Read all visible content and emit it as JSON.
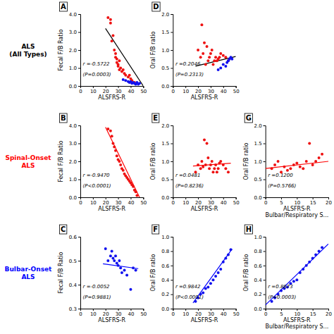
{
  "chart_data": [
    {
      "type": "scatter",
      "title": "A",
      "xlabel": "ALSFRS-R",
      "ylabel": "Fecal F/B Ratio",
      "xlim": [
        0,
        50
      ],
      "ylim": [
        0.0,
        4.0
      ],
      "xticks": [
        0,
        10,
        20,
        30,
        40,
        50
      ],
      "yticks": [
        {
          "value": 0.0,
          "label": "0.0"
        },
        {
          "value": 1.0,
          "label": "1.0"
        },
        {
          "value": 2.0,
          "label": "2.0"
        },
        {
          "value": 3.0,
          "label": "3.0"
        },
        {
          "value": 4.0,
          "label": "4.0"
        }
      ],
      "annotations": [
        "r =-0.5722",
        "(P=0.0003)"
      ],
      "series": [
        {
          "type": "scatter",
          "color": "#EE1111",
          "x": [
            22,
            24,
            24,
            25,
            26,
            27,
            28,
            28,
            29,
            29,
            30,
            30,
            31,
            31,
            32,
            33,
            34,
            35,
            36,
            38,
            39,
            40,
            41,
            43
          ],
          "values": [
            3.8,
            3.7,
            3.5,
            2.5,
            2.8,
            2.0,
            1.8,
            1.6,
            1.5,
            1.3,
            1.2,
            1.1,
            1.4,
            0.9,
            1.0,
            0.8,
            0.9,
            0.7,
            0.6,
            0.5,
            0.6,
            0.4,
            0.3,
            0.2
          ]
        },
        {
          "type": "scatter",
          "color": "#1111EE",
          "x": [
            34,
            36,
            38,
            39,
            40,
            41,
            42,
            43,
            44,
            45,
            46,
            47
          ],
          "values": [
            0.35,
            0.3,
            0.25,
            0.2,
            0.25,
            0.15,
            0.2,
            0.15,
            0.1,
            0.2,
            0.1,
            0.15
          ]
        },
        {
          "type": "line",
          "color": "black",
          "x": [
            20,
            50
          ],
          "values": [
            3.2,
            0.0
          ]
        }
      ]
    },
    {
      "type": "scatter",
      "title": "B",
      "xlabel": "ALSFRS-R",
      "ylabel": "Fecal F/B Ratio",
      "xlim": [
        0,
        50
      ],
      "ylim": [
        0.0,
        4.0
      ],
      "xticks": [
        0,
        10,
        20,
        30,
        40,
        50
      ],
      "yticks": [
        {
          "value": 0.0,
          "label": "0.0"
        },
        {
          "value": 1.0,
          "label": "1.0"
        },
        {
          "value": 2.0,
          "label": "2.0"
        },
        {
          "value": 3.0,
          "label": "3.0"
        },
        {
          "value": 4.0,
          "label": "4.0"
        }
      ],
      "annotations": [
        "r =-0.9470",
        "(P<0.0001)"
      ],
      "series": [
        {
          "type": "scatter",
          "color": "#EE1111",
          "x": [
            22,
            24,
            25,
            26,
            27,
            28,
            29,
            30,
            31,
            32,
            33,
            34,
            35,
            36,
            37,
            38,
            39,
            40,
            41,
            42,
            43,
            44,
            45
          ],
          "values": [
            3.8,
            3.7,
            3.4,
            3.0,
            2.8,
            2.6,
            2.3,
            2.1,
            2.0,
            1.8,
            1.6,
            1.5,
            1.3,
            1.2,
            1.1,
            1.0,
            0.9,
            0.8,
            0.7,
            0.6,
            0.4,
            0.3,
            0.1
          ]
        },
        {
          "type": "line",
          "color": "red",
          "x": [
            20,
            47
          ],
          "values": [
            3.9,
            0.0
          ]
        }
      ]
    },
    {
      "type": "scatter",
      "title": "C",
      "xlabel": "ALSFRS-R",
      "ylabel": "Fecal F/B Ratio",
      "xlim": [
        0,
        50
      ],
      "ylim": [
        0.3,
        0.6
      ],
      "xticks": [
        0,
        10,
        20,
        30,
        40,
        50
      ],
      "yticks": [
        0.3,
        0.4,
        0.5,
        0.6
      ],
      "annotations": [
        "r =-0.0052",
        "(P=0.9881)"
      ],
      "series": [
        {
          "type": "scatter",
          "color": "#1111EE",
          "x": [
            20,
            22,
            24,
            25,
            26,
            27,
            28,
            29,
            30,
            31,
            32,
            33,
            35,
            37,
            40,
            42,
            44
          ],
          "values": [
            0.55,
            0.5,
            0.52,
            0.54,
            0.51,
            0.5,
            0.52,
            0.49,
            0.48,
            0.5,
            0.47,
            0.45,
            0.46,
            0.44,
            0.38,
            0.47,
            0.46
          ]
        },
        {
          "type": "line",
          "color": "blue",
          "x": [
            18,
            46
          ],
          "values": [
            0.487,
            0.467
          ]
        }
      ]
    },
    {
      "type": "scatter",
      "title": "D",
      "xlabel": "ALSFRS-R",
      "ylabel": "Oral F/B ratio",
      "xlim": [
        0,
        50
      ],
      "ylim": [
        0.0,
        2.0
      ],
      "xticks": [
        0,
        10,
        20,
        30,
        40,
        50
      ],
      "yticks": [
        {
          "value": 0.0,
          "label": "0.0"
        },
        0.5,
        {
          "value": 1.0,
          "label": "1.0"
        },
        1.5,
        {
          "value": 2.0,
          "label": "2.0"
        }
      ],
      "annotations": [
        "r =0.2046",
        "(P=0.2313)"
      ],
      "series": [
        {
          "type": "scatter",
          "color": "#EE1111",
          "x": [
            20,
            22,
            23,
            24,
            25,
            26,
            27,
            28,
            29,
            30,
            31,
            32,
            33,
            34,
            35,
            36,
            37,
            38,
            40,
            42,
            44
          ],
          "values": [
            1.0,
            0.8,
            1.7,
            0.9,
            1.2,
            0.6,
            1.1,
            0.7,
            0.8,
            0.9,
            1.0,
            0.6,
            0.7,
            0.8,
            0.7,
            0.75,
            0.8,
            0.9,
            0.85,
            0.8,
            0.7
          ]
        },
        {
          "type": "scatter",
          "color": "#1111EE",
          "x": [
            36,
            38,
            40,
            42,
            43,
            44,
            45,
            46,
            47
          ],
          "values": [
            0.45,
            0.5,
            0.6,
            0.55,
            0.65,
            0.7,
            0.75,
            0.8,
            0.75
          ]
        },
        {
          "type": "line",
          "color": "black",
          "x": [
            18,
            50
          ],
          "values": [
            0.55,
            0.82
          ]
        }
      ]
    },
    {
      "type": "scatter",
      "title": "E",
      "xlabel": "ALSFRS-R",
      "ylabel": "Oral F/B ratio",
      "xlim": [
        0,
        50
      ],
      "ylim": [
        0.0,
        2.0
      ],
      "xticks": [
        0,
        10,
        20,
        30,
        40,
        50
      ],
      "yticks": [
        {
          "value": 0.0,
          "label": "0.0"
        },
        0.5,
        {
          "value": 1.0,
          "label": "1.0"
        },
        1.5,
        {
          "value": 2.0,
          "label": "2.0"
        }
      ],
      "annotations": [
        "r =0.0481",
        "(P=0.8236)"
      ],
      "series": [
        {
          "type": "scatter",
          "color": "#EE1111",
          "x": [
            18,
            20,
            22,
            23,
            24,
            25,
            26,
            27,
            28,
            29,
            30,
            31,
            32,
            33,
            34,
            35,
            36,
            37,
            38,
            40,
            42,
            44
          ],
          "values": [
            0.7,
            0.9,
            0.8,
            1.0,
            0.85,
            1.6,
            0.9,
            1.5,
            1.1,
            0.8,
            0.9,
            1.0,
            0.7,
            0.8,
            0.9,
            0.7,
            0.8,
            0.95,
            1.0,
            0.9,
            0.8,
            0.7
          ]
        },
        {
          "type": "line",
          "color": "red",
          "x": [
            16,
            46
          ],
          "values": [
            0.87,
            0.95
          ]
        }
      ]
    },
    {
      "type": "scatter",
      "title": "F",
      "xlabel": "ALSFRS-R",
      "ylabel": "Oral F/B ratio",
      "xlim": [
        0,
        50
      ],
      "ylim": [
        0.0,
        1.0
      ],
      "xticks": [
        0,
        10,
        20,
        30,
        40,
        50
      ],
      "yticks": [
        {
          "value": 0.0,
          "label": "0.0"
        },
        0.2,
        0.4,
        0.6,
        0.8,
        {
          "value": 1.0,
          "label": "1.0"
        }
      ],
      "annotations": [
        "r =0.9842",
        "(P<0.0001)"
      ],
      "series": [
        {
          "type": "scatter",
          "color": "#1111EE",
          "x": [
            18,
            20,
            22,
            24,
            26,
            28,
            30,
            32,
            34,
            36,
            38,
            40,
            42,
            44,
            46
          ],
          "values": [
            0.1,
            0.15,
            0.2,
            0.22,
            0.28,
            0.3,
            0.35,
            0.4,
            0.45,
            0.5,
            0.55,
            0.65,
            0.7,
            0.75,
            0.82
          ]
        },
        {
          "type": "line",
          "color": "blue",
          "x": [
            16,
            47
          ],
          "values": [
            0.08,
            0.83
          ]
        }
      ]
    },
    {
      "type": "scatter",
      "title": "G",
      "xlabel": "ALSFRS-R\nBulbar/Respiratory S...",
      "ylabel": "Oral F/B ratio",
      "xlim": [
        0,
        20
      ],
      "ylim": [
        0.0,
        2.0
      ],
      "xticks": [
        0,
        5,
        10,
        15,
        20
      ],
      "yticks": [
        {
          "value": 0.0,
          "label": "0.0"
        },
        0.5,
        {
          "value": 1.0,
          "label": "1.0"
        },
        1.5,
        {
          "value": 2.0,
          "label": "2.0"
        }
      ],
      "annotations": [
        "r =0.1200",
        "(P=0.5766)"
      ],
      "series": [
        {
          "type": "scatter",
          "color": "#EE1111",
          "x": [
            2,
            3,
            4,
            5,
            6,
            7,
            8,
            9,
            10,
            11,
            12,
            13,
            14,
            15,
            16,
            17,
            18
          ],
          "values": [
            0.8,
            0.9,
            1.0,
            0.7,
            0.85,
            0.75,
            0.8,
            0.9,
            0.95,
            0.85,
            0.8,
            1.0,
            1.5,
            0.9,
            1.0,
            1.1,
            1.2
          ]
        },
        {
          "type": "line",
          "color": "red",
          "x": [
            0,
            20
          ],
          "values": [
            0.8,
            1.0
          ]
        }
      ]
    },
    {
      "type": "scatter",
      "title": "H",
      "xlabel": "ALSFRS-R\nBulbar/Respiratory S...",
      "ylabel": "Oral F/B ratio",
      "xlim": [
        0,
        20
      ],
      "ylim": [
        0.0,
        1.0
      ],
      "xticks": [
        0,
        5,
        10,
        15,
        20
      ],
      "yticks": [
        {
          "value": 0.0,
          "label": "0.0"
        },
        0.2,
        0.4,
        0.6,
        0.8,
        {
          "value": 1.0,
          "label": "1.0"
        }
      ],
      "annotations": [
        "r =0.8873",
        "(P=0.0003)"
      ],
      "series": [
        {
          "type": "scatter",
          "color": "#1111EE",
          "x": [
            2,
            3,
            4,
            5,
            6,
            7,
            8,
            9,
            10,
            11,
            12,
            13,
            14,
            15,
            16,
            17,
            18
          ],
          "values": [
            0.1,
            0.15,
            0.2,
            0.25,
            0.28,
            0.3,
            0.35,
            0.38,
            0.4,
            0.5,
            0.55,
            0.6,
            0.65,
            0.7,
            0.75,
            0.8,
            0.85
          ]
        },
        {
          "type": "line",
          "color": "blue",
          "x": [
            0,
            20
          ],
          "values": [
            0.05,
            0.9
          ]
        }
      ]
    }
  ],
  "annotations": [
    {
      "text": "ALS\n(All Types)",
      "color": "black"
    },
    {
      "text": "Spinal-Onset\nALS",
      "color": "red"
    },
    {
      "text": "Bulbar-Onset\nALS",
      "color": "blue"
    }
  ]
}
